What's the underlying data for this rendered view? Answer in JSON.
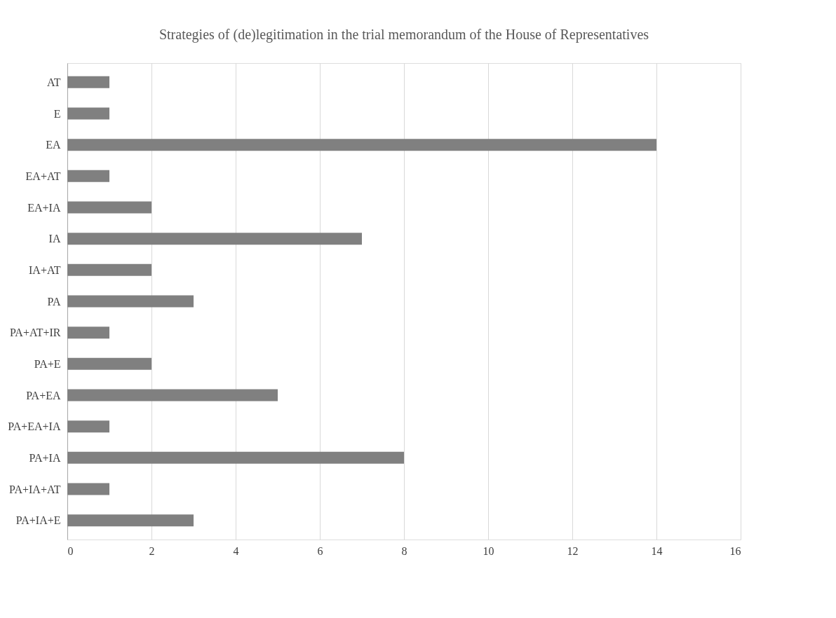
{
  "chart_data": {
    "type": "bar",
    "orientation": "horizontal",
    "title": "Strategies of (de)legitimation in the trial memorandum of the House of Representatives",
    "categories": [
      "AT",
      "E",
      "EA",
      "EA+AT",
      "EA+IA",
      "IA",
      "IA+AT",
      "PA",
      "PA+AT+IR",
      "PA+E",
      "PA+EA",
      "PA+EA+IA",
      "PA+IA",
      "PA+IA+AT",
      "PA+IA+E"
    ],
    "values": [
      1,
      1,
      14,
      1,
      2,
      7,
      2,
      3,
      1,
      2,
      5,
      1,
      8,
      1,
      3
    ],
    "color": "#808080",
    "xlim": [
      0,
      16
    ],
    "xticks": [
      0,
      2,
      4,
      6,
      8,
      10,
      12,
      14,
      16
    ],
    "grid": "x"
  }
}
